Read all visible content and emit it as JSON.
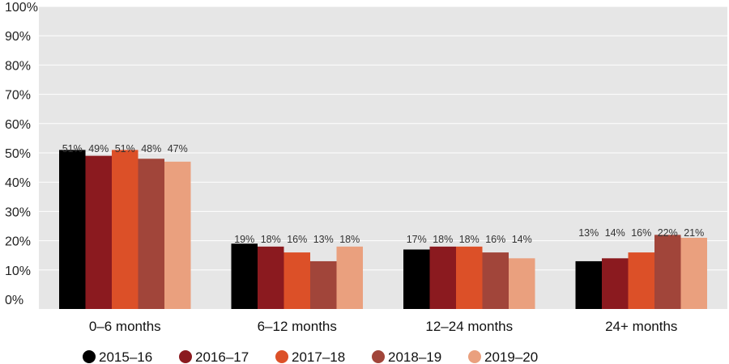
{
  "chart_data": {
    "type": "bar",
    "categories": [
      "0–6 months",
      "6–12 months",
      "12–24 months",
      "24+ months"
    ],
    "series": [
      {
        "name": "2015–16",
        "color": "#000000",
        "values": [
          51,
          19,
          17,
          13
        ]
      },
      {
        "name": "2016–17",
        "color": "#8b1a1f",
        "values": [
          49,
          18,
          18,
          14
        ]
      },
      {
        "name": "2017–18",
        "color": "#dc5028",
        "values": [
          51,
          16,
          18,
          16
        ]
      },
      {
        "name": "2018–19",
        "color": "#a1453a",
        "values": [
          48,
          13,
          16,
          22
        ]
      },
      {
        "name": "2019–20",
        "color": "#eaa07e",
        "values": [
          47,
          18,
          14,
          21
        ]
      }
    ],
    "ylim": [
      0,
      100
    ],
    "yticks": [
      "0%",
      "10%",
      "20%",
      "30%",
      "40%",
      "50%",
      "60%",
      "70%",
      "80%",
      "90%",
      "100%"
    ],
    "data_labels": [
      [
        "51%",
        "49%",
        "51%",
        "48%",
        "47%"
      ],
      [
        "19%",
        "18%",
        "16%",
        "13%",
        "18%"
      ],
      [
        "17%",
        "18%",
        "18%",
        "16%",
        "14%"
      ],
      [
        "13%",
        "14%",
        "16%",
        "22%",
        "21%"
      ]
    ],
    "grid": true,
    "legend_position": "bottom",
    "plot_background": "#e6e6e6"
  }
}
